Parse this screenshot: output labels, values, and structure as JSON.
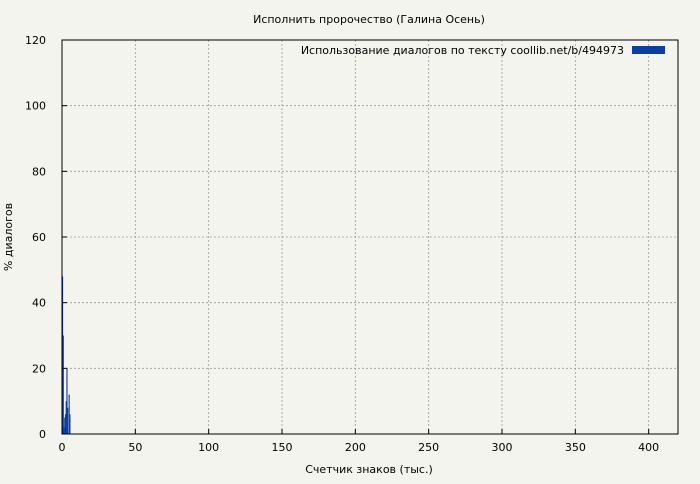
{
  "chart_data": {
    "type": "bar",
    "title": "Исполнить пророчество (Галина Осень)",
    "xlabel": "Счетчик знаков (тыс.)",
    "ylabel": "% диалогов",
    "xlim": [
      0,
      420
    ],
    "ylim": [
      0,
      120
    ],
    "x_ticks": [
      0,
      50,
      100,
      150,
      200,
      250,
      300,
      350,
      400
    ],
    "y_ticks": [
      0,
      20,
      40,
      60,
      80,
      100,
      120
    ],
    "grid": true,
    "legend_position": "top-right",
    "series": [
      {
        "name": "Использование диалогов по тексту  coollib.net/b/494973",
        "color": "#0a3ea6",
        "step_kchars": 0.5,
        "values": [
          48,
          30,
          2,
          5,
          6,
          10,
          20,
          8,
          0,
          12,
          6,
          0,
          0,
          0,
          0,
          0,
          0,
          0,
          0,
          0,
          0,
          0,
          0,
          0,
          0,
          0,
          0,
          0,
          0,
          0,
          0,
          0,
          0,
          0,
          0,
          0,
          0,
          0,
          0,
          0,
          0,
          0,
          0,
          0,
          0,
          0,
          0,
          0,
          0,
          0,
          0,
          0,
          0,
          0,
          0,
          0,
          0,
          0,
          0,
          0,
          0,
          0,
          0,
          0,
          0,
          0,
          0,
          0,
          0,
          0,
          0,
          0,
          0,
          0,
          0,
          0,
          0,
          0,
          0,
          0,
          0,
          0,
          0,
          0,
          0,
          0,
          0,
          0,
          0,
          0,
          0,
          0,
          0,
          0,
          0,
          0,
          0,
          0,
          0,
          0,
          0,
          0,
          0,
          0,
          0,
          0,
          0,
          0,
          0,
          0,
          0,
          0,
          0,
          0,
          0,
          0,
          0,
          0,
          0,
          0,
          0,
          0,
          0,
          0,
          0,
          0,
          0,
          0,
          0,
          0,
          0,
          0,
          0,
          0,
          0,
          0,
          0,
          0,
          0,
          0,
          0,
          0,
          0,
          0,
          0,
          0,
          0,
          0,
          0,
          0,
          0,
          0,
          0,
          0,
          0,
          0,
          0,
          0,
          0,
          0,
          0,
          0,
          0,
          0,
          0,
          0,
          0,
          0,
          0,
          0,
          0,
          0,
          0,
          0,
          0,
          0,
          0,
          0,
          0,
          0,
          0,
          0,
          0,
          0,
          0,
          0,
          0,
          0,
          0,
          0,
          0,
          0,
          0,
          0,
          0,
          0,
          0,
          0,
          0,
          0,
          0,
          0,
          0,
          0,
          0,
          0,
          0,
          0,
          0,
          0,
          0,
          0,
          0,
          0,
          0,
          0,
          0,
          0,
          0,
          0,
          0,
          0,
          0,
          0,
          0,
          0,
          0,
          0,
          0,
          0,
          0,
          0,
          0,
          0,
          0,
          0,
          0,
          0,
          0,
          0,
          0,
          0,
          0,
          0,
          0,
          0,
          0,
          0,
          0,
          0,
          0,
          0,
          0,
          0,
          0,
          0,
          0,
          0,
          0,
          0,
          0,
          0,
          0,
          0,
          0,
          0,
          0,
          0,
          0,
          0,
          0,
          0,
          0,
          0,
          0,
          0,
          0,
          0,
          0,
          0,
          0,
          0,
          0,
          0,
          0,
          0,
          0,
          0,
          0,
          0,
          0,
          0,
          0,
          0,
          0,
          0,
          0,
          0,
          0,
          0,
          0,
          0,
          0,
          0,
          0,
          0,
          0,
          0,
          0,
          0,
          0,
          0,
          0,
          0,
          0,
          0,
          0,
          0,
          0,
          0,
          0,
          0,
          0,
          0,
          0,
          0,
          0,
          0,
          0,
          0,
          0,
          0,
          0,
          0,
          0,
          0,
          0,
          0,
          0,
          0,
          0,
          0,
          0,
          0,
          0,
          0,
          0,
          0,
          0,
          0,
          0,
          0,
          0,
          0,
          0,
          0,
          0,
          0,
          0,
          0,
          0,
          0,
          0,
          0,
          0,
          0,
          0,
          0,
          0,
          0,
          0,
          0,
          0,
          0,
          0,
          0,
          0,
          0,
          0,
          0,
          0,
          0,
          0,
          0,
          0,
          0,
          0,
          0,
          0,
          0,
          0,
          0,
          0,
          0,
          0,
          0,
          0,
          0,
          0,
          0,
          0,
          0,
          0,
          0,
          0,
          0,
          0,
          0,
          0,
          0,
          0,
          0,
          0,
          0,
          0,
          0,
          0,
          0,
          0,
          0,
          0,
          0,
          0,
          0,
          0,
          0,
          0,
          0,
          0,
          0,
          0,
          0,
          0,
          0,
          0,
          0,
          0,
          0,
          0,
          0,
          0,
          0,
          0,
          0,
          0,
          0,
          0,
          0,
          0,
          0,
          0,
          0,
          0,
          0,
          0,
          0,
          0,
          0,
          0,
          0,
          0,
          0,
          0,
          0,
          0,
          0,
          0,
          0,
          0,
          0,
          0,
          0,
          0,
          0,
          0,
          0,
          0,
          0,
          0,
          0,
          0,
          0,
          0,
          0,
          0,
          0,
          0,
          0,
          0,
          0,
          0,
          0,
          0,
          0,
          0,
          0,
          0,
          0,
          0,
          0,
          0,
          0,
          0,
          0,
          0,
          0,
          0,
          0,
          0,
          0,
          0,
          0,
          0,
          0,
          0,
          0,
          0,
          0,
          0,
          0,
          0,
          0,
          0,
          0,
          0,
          0,
          0,
          0,
          0,
          0,
          0,
          0,
          0,
          0,
          0,
          0,
          0,
          0,
          0,
          0,
          0,
          0,
          0,
          0,
          0,
          0,
          0,
          0,
          0,
          0,
          0,
          0,
          0,
          0,
          0,
          0,
          0,
          0,
          0,
          0,
          0,
          0,
          0,
          0,
          0,
          0,
          0,
          0,
          0,
          0,
          0,
          0,
          0,
          0,
          0,
          0,
          0,
          0,
          0,
          0,
          0,
          0,
          0,
          0,
          0,
          0,
          0,
          0,
          0,
          0,
          0,
          0,
          0,
          0,
          0,
          0,
          0,
          0,
          0,
          0,
          0,
          0,
          0,
          0,
          0,
          0,
          0,
          0,
          0,
          0,
          0,
          0,
          0,
          0,
          0,
          0,
          0,
          0,
          0,
          0,
          0,
          0,
          0,
          0,
          0,
          0,
          0,
          0,
          0,
          0,
          0,
          0,
          0,
          0,
          0,
          0,
          0,
          0,
          0,
          0,
          0,
          0,
          0,
          0,
          0,
          0,
          0,
          0,
          0,
          0,
          0,
          0,
          0,
          0,
          0,
          0,
          0,
          0,
          0,
          0,
          0,
          0,
          0,
          0,
          0,
          0,
          0,
          0,
          0,
          0,
          0,
          0,
          0,
          0,
          0,
          0,
          0,
          0,
          0,
          0,
          0,
          0,
          0,
          0,
          0,
          0,
          0,
          0,
          0,
          0,
          0,
          0,
          0,
          0,
          0,
          0,
          0,
          0,
          0,
          0,
          0,
          0,
          0,
          0,
          0,
          0,
          0,
          0,
          0,
          0,
          0,
          0,
          0,
          0,
          0,
          0,
          0,
          0,
          0,
          0,
          0,
          0,
          0,
          0,
          0,
          0,
          0,
          0,
          0,
          0,
          0,
          0,
          0,
          0,
          0,
          0,
          0,
          0,
          0,
          0,
          0,
          0,
          0,
          0,
          0,
          0,
          0,
          0,
          0,
          0,
          0,
          0,
          0,
          0,
          0,
          0,
          0,
          0,
          0,
          0,
          0,
          0,
          0,
          0,
          0,
          0,
          0,
          0,
          0,
          0,
          0,
          0,
          0,
          0,
          0,
          0,
          0,
          0,
          0,
          0,
          0,
          0,
          0,
          0,
          0,
          0,
          0,
          0,
          0,
          0,
          0,
          0,
          0,
          0,
          0,
          0,
          0,
          0,
          0,
          0,
          0,
          0,
          0,
          0,
          0,
          0,
          0,
          0,
          0,
          0,
          0,
          0,
          0,
          0,
          0,
          0,
          0,
          0,
          0,
          0,
          0,
          0,
          0,
          0,
          0,
          0,
          0,
          0,
          0,
          0,
          0,
          0,
          0,
          0,
          0,
          0,
          0,
          0,
          0,
          0,
          0,
          0,
          0,
          0,
          0,
          0,
          0,
          0,
          0,
          0,
          0,
          0,
          0,
          0,
          0,
          0,
          0,
          0,
          0,
          0,
          0,
          0,
          0,
          0,
          0,
          0,
          0,
          0,
          0,
          0,
          0,
          0,
          0,
          0,
          0,
          0,
          0,
          0,
          0,
          0,
          0,
          0,
          0,
          0,
          0,
          0,
          0,
          0,
          0,
          0,
          0,
          0,
          0,
          0,
          0,
          0,
          0,
          0,
          0,
          0,
          0,
          0,
          0,
          0,
          0,
          0,
          0,
          0,
          0,
          0,
          0,
          0,
          0,
          0,
          0,
          0,
          0,
          0,
          0,
          0,
          0,
          0,
          0,
          0,
          0,
          0,
          0,
          0,
          0,
          0,
          0,
          0,
          0,
          0,
          0,
          0
        ]
      }
    ]
  }
}
